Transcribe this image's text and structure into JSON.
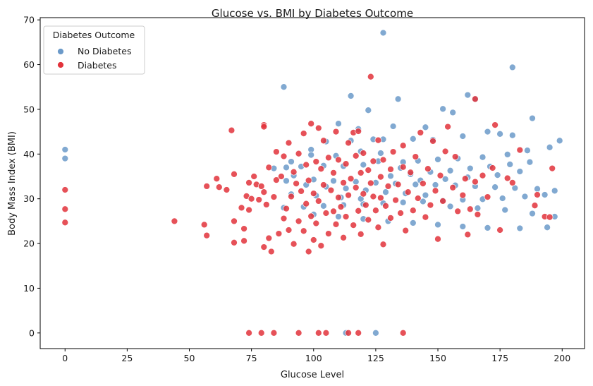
{
  "chart_data": {
    "type": "scatter",
    "title": "Glucose vs. BMI by Diabetes Outcome",
    "xlabel": "Glucose Level",
    "ylabel": "Body Mass Index (BMI)",
    "xlim": [
      -10,
      209
    ],
    "ylim": [
      -3.5,
      70.5
    ],
    "xticks": [
      0,
      25,
      50,
      75,
      100,
      125,
      150,
      175,
      200
    ],
    "yticks": [
      0,
      10,
      20,
      30,
      40,
      50,
      60,
      70
    ],
    "grid": false,
    "legend": {
      "title": "Diabetes Outcome",
      "placement": "top-left"
    },
    "series": [
      {
        "name": "No Diabetes",
        "color": "#6b9ac9",
        "points": [
          [
            0,
            41
          ],
          [
            0,
            39
          ],
          [
            88,
            55
          ],
          [
            115,
            53
          ],
          [
            128,
            67.1
          ],
          [
            162,
            53.2
          ],
          [
            180,
            59.4
          ],
          [
            165,
            52.3
          ],
          [
            134,
            52.3
          ],
          [
            122,
            49.8
          ],
          [
            156,
            49.3
          ],
          [
            152,
            50.1
          ],
          [
            188,
            48
          ],
          [
            145,
            46
          ],
          [
            132,
            46.2
          ],
          [
            118,
            45.6
          ],
          [
            110,
            46.8
          ],
          [
            170,
            45
          ],
          [
            175,
            44.5
          ],
          [
            180,
            44.2
          ],
          [
            160,
            44
          ],
          [
            148,
            43.2
          ],
          [
            140,
            43.4
          ],
          [
            128,
            43.3
          ],
          [
            124,
            43.3
          ],
          [
            115,
            43
          ],
          [
            105,
            42.8
          ],
          [
            99,
            41
          ],
          [
            195,
            41.5
          ],
          [
            186,
            40.8
          ],
          [
            178,
            39.9
          ],
          [
            168,
            39.3
          ],
          [
            158,
            39
          ],
          [
            150,
            38.8
          ],
          [
            142,
            38.5
          ],
          [
            136,
            38.2
          ],
          [
            126,
            38.4
          ],
          [
            120,
            37.6
          ],
          [
            112,
            37.3
          ],
          [
            104,
            37.4
          ],
          [
            95,
            37.2
          ],
          [
            89,
            37
          ],
          [
            84,
            36.8
          ],
          [
            92,
            35.2
          ],
          [
            100,
            34.3
          ],
          [
            108,
            34
          ],
          [
            117,
            33.8
          ],
          [
            125,
            33.6
          ],
          [
            133,
            33.4
          ],
          [
            141,
            33.2
          ],
          [
            149,
            33.1
          ],
          [
            157,
            33
          ],
          [
            165,
            32.8
          ],
          [
            173,
            32.6
          ],
          [
            181,
            32.4
          ],
          [
            190,
            32.2
          ],
          [
            197,
            31.8
          ],
          [
            193,
            30.9
          ],
          [
            185,
            30.5
          ],
          [
            176,
            30.1
          ],
          [
            168,
            29.9
          ],
          [
            160,
            29.8
          ],
          [
            152,
            29.6
          ],
          [
            144,
            29.4
          ],
          [
            136,
            29.2
          ],
          [
            128,
            29
          ],
          [
            120,
            28.8
          ],
          [
            112,
            28.6
          ],
          [
            104,
            28.4
          ],
          [
            96,
            28.2
          ],
          [
            88,
            28
          ],
          [
            100,
            26.5
          ],
          [
            110,
            26
          ],
          [
            120,
            25.5
          ],
          [
            130,
            25
          ],
          [
            140,
            24.6
          ],
          [
            150,
            24.2
          ],
          [
            160,
            23.8
          ],
          [
            170,
            23.5
          ],
          [
            183,
            23.4
          ],
          [
            194,
            23.6
          ],
          [
            197,
            26
          ],
          [
            188,
            26.7
          ],
          [
            177,
            27.5
          ],
          [
            166,
            27.9
          ],
          [
            155,
            28.3
          ],
          [
            145,
            30.8
          ],
          [
            137,
            31.2
          ],
          [
            129,
            31.5
          ],
          [
            121,
            31.9
          ],
          [
            113,
            32.3
          ],
          [
            105,
            32.7
          ],
          [
            97,
            33.1
          ],
          [
            89,
            34
          ],
          [
            91,
            31
          ],
          [
            101,
            30.7
          ],
          [
            111,
            30.3
          ],
          [
            119,
            30
          ],
          [
            131,
            35.1
          ],
          [
            139,
            35.5
          ],
          [
            147,
            36
          ],
          [
            155,
            36.3
          ],
          [
            163,
            36.8
          ],
          [
            171,
            37.2
          ],
          [
            179,
            37.7
          ],
          [
            187,
            38.2
          ],
          [
            199,
            43
          ],
          [
            183,
            36.1
          ],
          [
            174,
            35.3
          ],
          [
            162,
            34.8
          ],
          [
            153,
            34.4
          ],
          [
            143,
            34.1
          ],
          [
            135,
            36.9
          ],
          [
            127,
            40.2
          ],
          [
            119,
            40.6
          ],
          [
            109,
            39.6
          ],
          [
            99,
            39.8
          ],
          [
            91,
            38.3
          ],
          [
            113,
            0
          ],
          [
            125,
            0
          ]
        ]
      },
      {
        "name": "Diabetes",
        "color": "#e2333b",
        "points": [
          [
            0,
            32
          ],
          [
            0,
            27.7
          ],
          [
            0,
            24.7
          ],
          [
            44,
            25
          ],
          [
            56,
            24.2
          ],
          [
            57,
            21.8
          ],
          [
            57,
            32.8
          ],
          [
            61,
            34.5
          ],
          [
            62,
            32.6
          ],
          [
            65,
            32
          ],
          [
            67,
            45.3
          ],
          [
            68,
            35.5
          ],
          [
            68,
            25
          ],
          [
            68,
            20.2
          ],
          [
            71,
            28
          ],
          [
            72,
            23.3
          ],
          [
            72,
            20.6
          ],
          [
            73,
            30.6
          ],
          [
            74,
            33.6
          ],
          [
            74,
            27.5
          ],
          [
            75,
            30
          ],
          [
            76,
            35
          ],
          [
            77,
            33.2
          ],
          [
            78,
            29.8
          ],
          [
            79,
            32.8
          ],
          [
            80,
            31.5
          ],
          [
            80,
            46.5
          ],
          [
            80,
            46.1
          ],
          [
            80,
            19.2
          ],
          [
            81,
            28.7
          ],
          [
            82,
            21.2
          ],
          [
            82,
            37
          ],
          [
            83,
            18.2
          ],
          [
            84,
            30.4
          ],
          [
            85,
            34.2
          ],
          [
            85,
            40.5
          ],
          [
            86,
            22.2
          ],
          [
            87,
            35
          ],
          [
            88,
            25.6
          ],
          [
            88,
            39.5
          ],
          [
            89,
            27.8
          ],
          [
            90,
            42.5
          ],
          [
            90,
            23
          ],
          [
            91,
            30.5
          ],
          [
            92,
            36
          ],
          [
            92,
            19.9
          ],
          [
            93,
            33.4
          ],
          [
            94,
            40.1
          ],
          [
            94,
            25
          ],
          [
            95,
            31.7
          ],
          [
            96,
            44.6
          ],
          [
            96,
            22.8
          ],
          [
            97,
            28.9
          ],
          [
            97,
            37.6
          ],
          [
            98,
            18.2
          ],
          [
            98,
            34.1
          ],
          [
            99,
            26.1
          ],
          [
            99,
            46.8
          ],
          [
            100,
            31.2
          ],
          [
            100,
            20.8
          ],
          [
            101,
            38.3
          ],
          [
            101,
            24.5
          ],
          [
            102,
            45.8
          ],
          [
            102,
            29.5
          ],
          [
            103,
            36.7
          ],
          [
            103,
            19.5
          ],
          [
            104,
            33.1
          ],
          [
            104,
            43
          ],
          [
            105,
            26.8
          ],
          [
            106,
            39.2
          ],
          [
            106,
            22.2
          ],
          [
            107,
            31.9
          ],
          [
            108,
            35.8
          ],
          [
            108,
            27.2
          ],
          [
            109,
            45
          ],
          [
            109,
            24.3
          ],
          [
            110,
            30.3
          ],
          [
            110,
            38.7
          ],
          [
            111,
            28.2
          ],
          [
            112,
            33.6
          ],
          [
            112,
            21.3
          ],
          [
            113,
            37.8
          ],
          [
            113,
            26
          ],
          [
            114,
            42.5
          ],
          [
            114,
            30.8
          ],
          [
            115,
            34.5
          ],
          [
            116,
            24.1
          ],
          [
            116,
            44.8
          ],
          [
            117,
            32.5
          ],
          [
            117,
            39.6
          ],
          [
            118,
            27.3
          ],
          [
            118,
            45.1
          ],
          [
            119,
            35.8
          ],
          [
            119,
            22.1
          ],
          [
            120,
            31.1
          ],
          [
            120,
            40.2
          ],
          [
            121,
            28.6
          ],
          [
            122,
            36.4
          ],
          [
            122,
            25.3
          ],
          [
            123,
            57.3
          ],
          [
            123,
            33.5
          ],
          [
            124,
            30.5
          ],
          [
            124,
            38.4
          ],
          [
            125,
            27.4
          ],
          [
            126,
            43.1
          ],
          [
            126,
            23.6
          ],
          [
            127,
            34.9
          ],
          [
            127,
            30.2
          ],
          [
            128,
            19.8
          ],
          [
            128,
            38.7
          ],
          [
            129,
            28.4
          ],
          [
            130,
            32.8
          ],
          [
            131,
            36.6
          ],
          [
            131,
            25.7
          ],
          [
            132,
            40.5
          ],
          [
            133,
            29.7
          ],
          [
            134,
            33.2
          ],
          [
            135,
            26.8
          ],
          [
            136,
            41.9
          ],
          [
            136,
            37.1
          ],
          [
            137,
            22.9
          ],
          [
            138,
            31.5
          ],
          [
            139,
            35.9
          ],
          [
            140,
            27.4
          ],
          [
            141,
            39.4
          ],
          [
            142,
            30.1
          ],
          [
            143,
            44.8
          ],
          [
            144,
            33.4
          ],
          [
            145,
            25.9
          ],
          [
            146,
            36.7
          ],
          [
            147,
            28.6
          ],
          [
            148,
            42.9
          ],
          [
            149,
            31.8
          ],
          [
            150,
            21
          ],
          [
            151,
            35.2
          ],
          [
            152,
            29.5
          ],
          [
            153,
            40.6
          ],
          [
            154,
            46.1
          ],
          [
            156,
            32.5
          ],
          [
            157,
            39.4
          ],
          [
            158,
            27.2
          ],
          [
            160,
            30.8
          ],
          [
            161,
            34.5
          ],
          [
            162,
            22
          ],
          [
            163,
            27.7
          ],
          [
            165,
            52.3
          ],
          [
            165,
            33.8
          ],
          [
            166,
            26.5
          ],
          [
            168,
            35.2
          ],
          [
            170,
            30.4
          ],
          [
            172,
            36.9
          ],
          [
            173,
            46.5
          ],
          [
            175,
            23
          ],
          [
            178,
            34.6
          ],
          [
            180,
            33.6
          ],
          [
            183,
            40.9
          ],
          [
            189,
            28.5
          ],
          [
            190,
            30.9
          ],
          [
            193,
            26
          ],
          [
            195,
            25.9
          ],
          [
            196,
            36.8
          ],
          [
            74,
            0
          ],
          [
            79,
            0
          ],
          [
            84,
            0
          ],
          [
            94,
            0
          ],
          [
            102,
            0
          ],
          [
            105,
            0
          ],
          [
            114,
            0
          ],
          [
            118,
            0
          ],
          [
            136,
            0
          ]
        ]
      }
    ]
  }
}
